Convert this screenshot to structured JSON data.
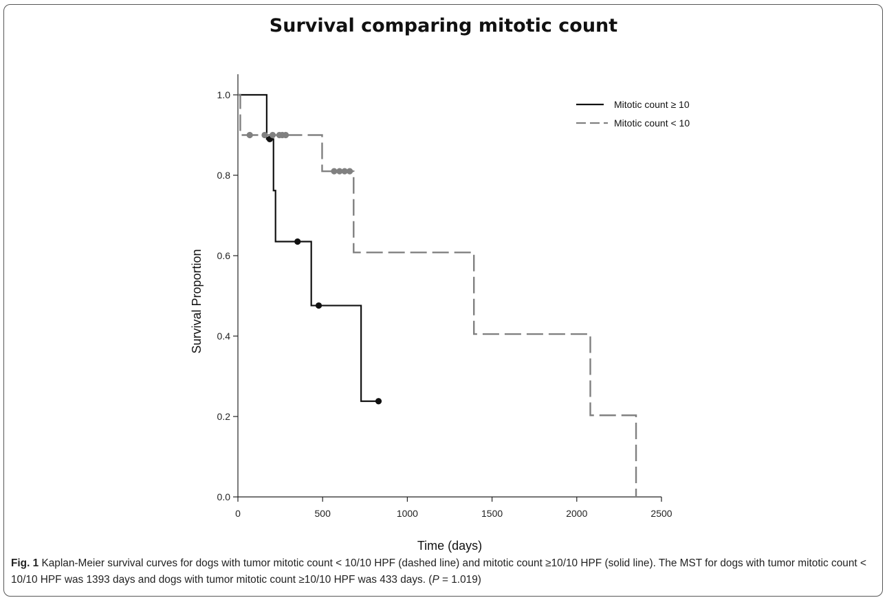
{
  "figure": {
    "title": "Survival comparing mitotic count",
    "caption_label": "Fig. 1",
    "caption_text": "Kaplan-Meier survival curves for dogs with tumor mitotic count < 10/10 HPF (dashed line) and mitotic count ≥10/10 HPF (solid line). The MST for dogs with tumor mitotic count < 10/10 HPF was 1393 days and dogs with tumor mitotic count ≥10/10 HPF was 433 days.",
    "caption_p_open": "(",
    "caption_p_italic": "P",
    "caption_p_rest": " = 1.019)"
  },
  "chart_data": {
    "type": "line",
    "title": "Survival comparing mitotic count",
    "xlabel": "Time (days)",
    "ylabel": "Survival Proportion",
    "xlim": [
      0,
      2500
    ],
    "ylim": [
      0,
      1
    ],
    "x_ticks": [
      "0",
      "500",
      "1000",
      "1500",
      "2000",
      "2500"
    ],
    "y_ticks": [
      "0.0",
      "0.2",
      "0.4",
      "0.6",
      "0.8",
      "1.0"
    ],
    "grid": false,
    "legend_position": "top-right",
    "series": [
      {
        "name": "Mitotic count ≥ 10",
        "style": "solid",
        "color": "#111111",
        "steps": [
          [
            0,
            1.0
          ],
          [
            170,
            0.89
          ],
          [
            210,
            0.762
          ],
          [
            222,
            0.635
          ],
          [
            433,
            0.476
          ],
          [
            727,
            0.238
          ],
          [
            830,
            0.238
          ]
        ],
        "censored": [
          [
            188,
            0.89
          ],
          [
            352,
            0.635
          ],
          [
            477,
            0.476
          ],
          [
            830,
            0.238
          ]
        ]
      },
      {
        "name": "Mitotic count < 10",
        "style": "dashed",
        "color": "#808080",
        "steps": [
          [
            0,
            1.0
          ],
          [
            14,
            0.9
          ],
          [
            497,
            0.81
          ],
          [
            683,
            0.608
          ],
          [
            1393,
            0.405
          ],
          [
            2080,
            0.203
          ],
          [
            2350,
            0.0
          ]
        ],
        "censored": [
          [
            70,
            0.9
          ],
          [
            158,
            0.9
          ],
          [
            205,
            0.9
          ],
          [
            245,
            0.9
          ],
          [
            262,
            0.9
          ],
          [
            282,
            0.9
          ],
          [
            568,
            0.81
          ],
          [
            600,
            0.81
          ],
          [
            630,
            0.81
          ],
          [
            660,
            0.81
          ]
        ]
      }
    ]
  }
}
